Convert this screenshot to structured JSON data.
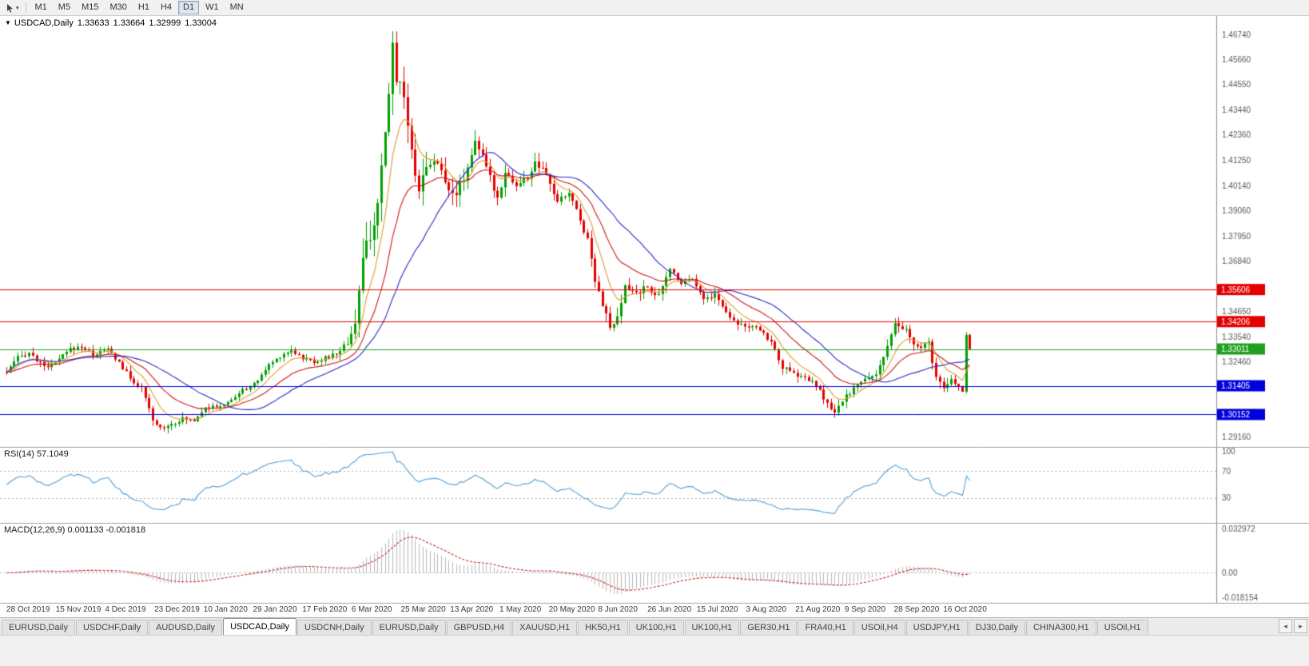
{
  "toolbar": {
    "tool_icon": "cursor-arrow-icon",
    "dropdown_icon": "▾",
    "timeframes": [
      "M1",
      "M5",
      "M15",
      "M30",
      "H1",
      "H4",
      "D1",
      "W1",
      "MN"
    ],
    "active_timeframe": "D1"
  },
  "chart_header": {
    "collapse_icon": "▼",
    "symbol": "USDCAD,Daily",
    "open": "1.33633",
    "high": "1.33664",
    "low": "1.32999",
    "close": "1.33004"
  },
  "price_axis": {
    "gray_ticks": [
      "1.46740",
      "1.45660",
      "1.44550",
      "1.43440",
      "1.42360",
      "1.41250",
      "1.40140",
      "1.39060",
      "1.37950",
      "1.36840",
      "1.34650",
      "1.33540",
      "1.32460",
      "1.29160"
    ]
  },
  "hlines": [
    {
      "price": 1.35606,
      "label": "1.35606",
      "color": "#e40000"
    },
    {
      "price": 1.34206,
      "label": "1.34206",
      "color": "#e40000"
    },
    {
      "price": 1.33011,
      "label": "1.33011",
      "color": "#1fa11f"
    },
    {
      "price": 1.31405,
      "label": "1.31405",
      "color": "#0000dd"
    },
    {
      "price": 1.30152,
      "label": "1.30152",
      "color": "#0000dd"
    }
  ],
  "time_axis": {
    "labels": [
      "28 Oct 2019",
      "15 Nov 2019",
      "4 Dec 2019",
      "23 Dec 2019",
      "10 Jan 2020",
      "29 Jan 2020",
      "17 Feb 2020",
      "6 Mar 2020",
      "25 Mar 2020",
      "13 Apr 2020",
      "1 May 2020",
      "20 May 2020",
      "8 Jun 2020",
      "26 Jun 2020",
      "15 Jul 2020",
      "3 Aug 2020",
      "21 Aug 2020",
      "9 Sep 2020",
      "28 Sep 2020",
      "16 Oct 2020"
    ]
  },
  "panels": {
    "rsi": {
      "label": "RSI(14) 57.1049",
      "axis_labels": [
        "100",
        "70",
        "30"
      ],
      "axis_values": [
        100,
        70,
        30
      ],
      "dashed_levels": [
        70,
        30
      ]
    },
    "macd": {
      "label": "MACD(12,26,9) 0.001133 -0.001818",
      "axis_max": "0.032972",
      "axis_zero": "0.00",
      "axis_min": "-0.018154"
    }
  },
  "tabs": {
    "items": [
      "EURUSD,Daily",
      "USDCHF,Daily",
      "AUDUSD,Daily",
      "USDCAD,Daily",
      "USDCNH,Daily",
      "EURUSD,Daily",
      "GBPUSD,H4",
      "XAUUSD,H1",
      "HK50,H1",
      "UK100,H1",
      "UK100,H1",
      "GER30,H1",
      "FRA40,H1",
      "USOil,H4",
      "USDJPY,H1",
      "DJ30,Daily",
      "CHINA300,H1",
      "USOil,H1"
    ],
    "active_index": 3,
    "scroll_left_icon": "◂",
    "scroll_right_icon": "▸"
  },
  "chart_data": {
    "type": "candlestick",
    "symbol": "USDCAD",
    "timeframe": "Daily",
    "title": "USDCAD,Daily",
    "candles": 258,
    "y_range": [
      1.287,
      1.4755
    ],
    "x_range_dates": [
      "28 Oct 2019",
      "26 Oct 2020"
    ],
    "last_candle": {
      "open": 1.33633,
      "high": 1.33664,
      "low": 1.32999,
      "close": 1.33004
    },
    "price_keyframes": [
      [
        0,
        1.32
      ],
      [
        3,
        1.3262
      ],
      [
        6,
        1.3286
      ],
      [
        9,
        1.3236
      ],
      [
        12,
        1.3224
      ],
      [
        14,
        1.3256
      ],
      [
        17,
        1.33
      ],
      [
        20,
        1.3312
      ],
      [
        23,
        1.3276
      ],
      [
        27,
        1.33
      ],
      [
        30,
        1.3242
      ],
      [
        33,
        1.3172
      ],
      [
        36,
        1.313
      ],
      [
        39,
        1.2986
      ],
      [
        41,
        1.2956
      ],
      [
        44,
        1.2976
      ],
      [
        47,
        1.2996
      ],
      [
        50,
        1.2991
      ],
      [
        53,
        1.3051
      ],
      [
        56,
        1.3046
      ],
      [
        59,
        1.3066
      ],
      [
        63,
        1.3121
      ],
      [
        66,
        1.3146
      ],
      [
        70,
        1.3231
      ],
      [
        73,
        1.3271
      ],
      [
        76,
        1.3296
      ],
      [
        79,
        1.3261
      ],
      [
        82,
        1.3246
      ],
      [
        85,
        1.3261
      ],
      [
        88,
        1.3281
      ],
      [
        91,
        1.3331
      ],
      [
        93,
        1.3421
      ],
      [
        95,
        1.3681
      ],
      [
        97,
        1.3811
      ],
      [
        99,
        1.3901
      ],
      [
        101,
        1.4231
      ],
      [
        103,
        1.4621
      ],
      [
        104,
        1.4501
      ],
      [
        106,
        1.4421
      ],
      [
        108,
        1.4151
      ],
      [
        110,
        1.4011
      ],
      [
        112,
        1.4091
      ],
      [
        114,
        1.4141
      ],
      [
        117,
        1.4031
      ],
      [
        120,
        1.3981
      ],
      [
        123,
        1.4091
      ],
      [
        125,
        1.4221
      ],
      [
        128,
        1.4091
      ],
      [
        131,
        1.3961
      ],
      [
        133,
        1.4081
      ],
      [
        136,
        1.4011
      ],
      [
        139,
        1.4051
      ],
      [
        141,
        1.4111
      ],
      [
        144,
        1.4061
      ],
      [
        147,
        1.3941
      ],
      [
        150,
        1.3986
      ],
      [
        152,
        1.3906
      ],
      [
        155,
        1.3781
      ],
      [
        157,
        1.3611
      ],
      [
        159,
        1.3501
      ],
      [
        161,
        1.3391
      ],
      [
        163,
        1.3431
      ],
      [
        165,
        1.3571
      ],
      [
        168,
        1.3546
      ],
      [
        171,
        1.3571
      ],
      [
        174,
        1.3531
      ],
      [
        177,
        1.3651
      ],
      [
        180,
        1.3591
      ],
      [
        183,
        1.3616
      ],
      [
        186,
        1.3516
      ],
      [
        189,
        1.3541
      ],
      [
        192,
        1.3461
      ],
      [
        195,
        1.3416
      ],
      [
        198,
        1.3396
      ],
      [
        201,
        1.3386
      ],
      [
        204,
        1.3331
      ],
      [
        207,
        1.3221
      ],
      [
        210,
        1.3191
      ],
      [
        213,
        1.3176
      ],
      [
        216,
        1.3141
      ],
      [
        219,
        1.3061
      ],
      [
        221,
        1.3016
      ],
      [
        223,
        1.3076
      ],
      [
        226,
        1.3131
      ],
      [
        229,
        1.3166
      ],
      [
        232,
        1.3196
      ],
      [
        235,
        1.3306
      ],
      [
        237,
        1.3406
      ],
      [
        240,
        1.3381
      ],
      [
        242,
        1.3321
      ],
      [
        244,
        1.3301
      ],
      [
        246,
        1.3331
      ],
      [
        248,
        1.3171
      ],
      [
        250,
        1.3126
      ],
      [
        252,
        1.3166
      ],
      [
        254,
        1.3136
      ],
      [
        255,
        1.3121
      ],
      [
        256,
        1.3363
      ],
      [
        257,
        1.33
      ]
    ],
    "volatility_keyframes": [
      [
        0,
        0.003
      ],
      [
        38,
        0.0036
      ],
      [
        60,
        0.0024
      ],
      [
        88,
        0.0032
      ],
      [
        93,
        0.0085
      ],
      [
        96,
        0.0135
      ],
      [
        103,
        0.0145
      ],
      [
        108,
        0.0115
      ],
      [
        115,
        0.0085
      ],
      [
        125,
        0.0065
      ],
      [
        135,
        0.0055
      ],
      [
        150,
        0.0046
      ],
      [
        158,
        0.0062
      ],
      [
        166,
        0.005
      ],
      [
        180,
        0.0038
      ],
      [
        200,
        0.0034
      ],
      [
        218,
        0.004
      ],
      [
        232,
        0.004
      ],
      [
        246,
        0.0042
      ],
      [
        257,
        0.003
      ]
    ],
    "indicators": {
      "ma": [
        {
          "type": "ema",
          "period": 8,
          "color": "#e09c30"
        },
        {
          "type": "ema",
          "period": 20,
          "color": "#d01616"
        },
        {
          "type": "sma",
          "period": 30,
          "color": "#2929c8"
        }
      ],
      "rsi": {
        "period": 14,
        "current": 57.1049,
        "range": [
          0,
          100
        ],
        "levels": [
          70,
          30
        ]
      },
      "macd": {
        "fast": 12,
        "slow": 26,
        "signal": 9,
        "current_main": 0.001133,
        "current_signal": -0.001818,
        "range": [
          -0.018154,
          0.032972
        ]
      }
    },
    "colors": {
      "up": "#00a000",
      "down": "#e40000",
      "background": "#ffffff",
      "axis_line": "#8c8c8c",
      "axis_text": "#5a5a5a",
      "rsi_line": "#4f9fd8",
      "macd_hist": "#b8b8b8",
      "macd_signal": "#cc2222",
      "level_dash": "#b4b4b4"
    }
  }
}
